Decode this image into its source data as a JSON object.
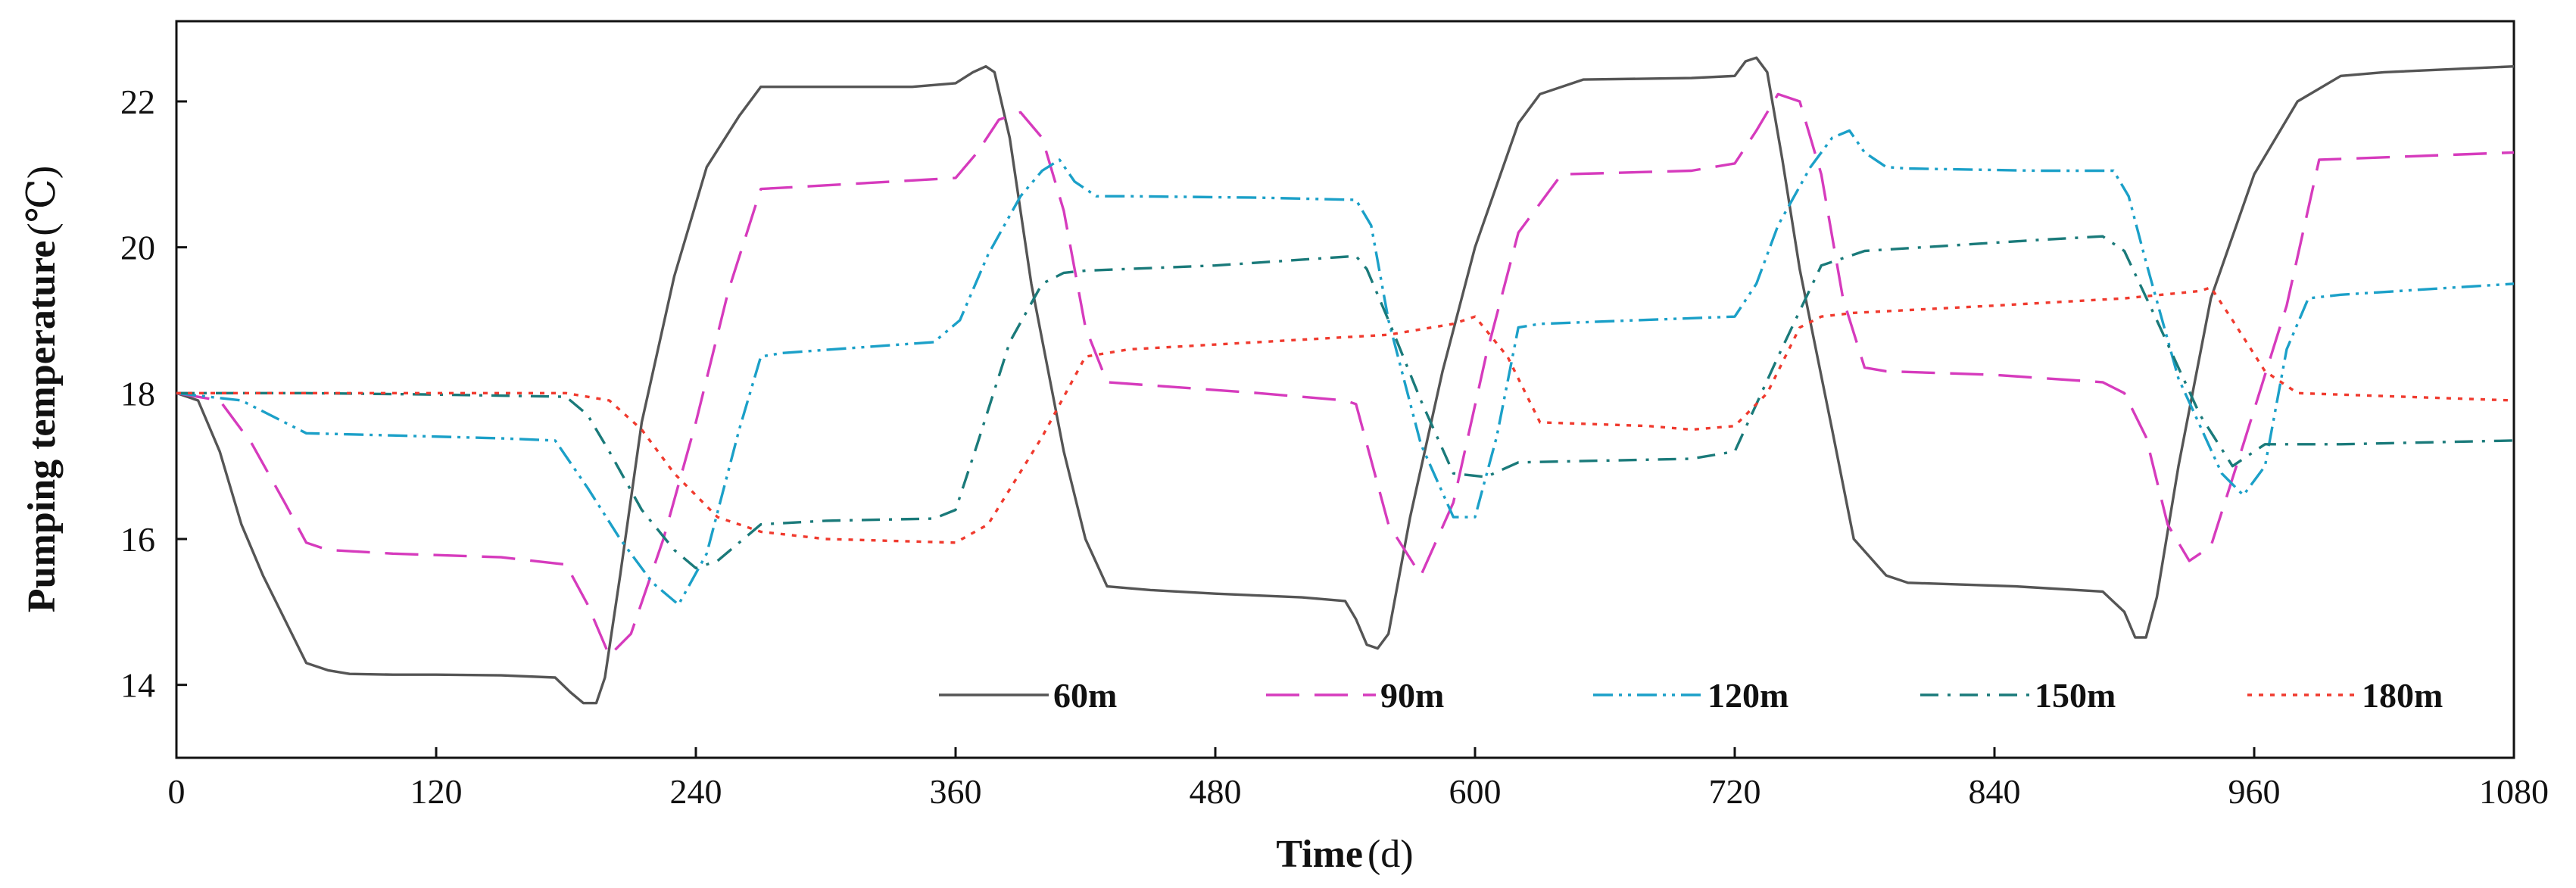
{
  "chart_data": {
    "type": "line",
    "title": "",
    "xlabel": "Time",
    "xlabel_unit": "(d)",
    "ylabel": "Pumping temperature",
    "ylabel_unit": "(℃)",
    "xlim": [
      0,
      1080
    ],
    "ylim": [
      13,
      23.1
    ],
    "xticks": [
      0,
      120,
      240,
      360,
      480,
      600,
      720,
      840,
      960,
      1080
    ],
    "yticks": [
      14,
      16,
      18,
      20,
      22
    ],
    "grid": false,
    "legend_position": "bottom-right",
    "series": [
      {
        "name": "60m",
        "color": "#555555",
        "stroke_width": 3.4,
        "dash": "",
        "x": [
          0,
          10,
          20,
          30,
          40,
          50,
          60,
          70,
          80,
          100,
          120,
          150,
          175,
          182,
          188,
          194,
          198,
          205,
          215,
          230,
          245,
          260,
          270,
          300,
          340,
          360,
          368,
          374,
          378,
          385,
          395,
          410,
          420,
          430,
          450,
          480,
          520,
          540,
          545,
          550,
          555,
          560,
          570,
          585,
          600,
          620,
          630,
          650,
          700,
          720,
          725,
          730,
          735,
          742,
          750,
          765,
          775,
          790,
          800,
          850,
          890,
          900,
          905,
          910,
          915,
          925,
          940,
          960,
          980,
          1000,
          1020,
          1080
        ],
        "y": [
          18.0,
          17.9,
          17.2,
          16.2,
          15.5,
          14.9,
          14.3,
          14.2,
          14.15,
          14.14,
          14.14,
          14.13,
          14.1,
          13.9,
          13.75,
          13.75,
          14.1,
          15.5,
          17.6,
          19.6,
          21.1,
          21.8,
          22.2,
          22.2,
          22.2,
          22.25,
          22.4,
          22.48,
          22.4,
          21.5,
          19.5,
          17.2,
          16.0,
          15.35,
          15.3,
          15.25,
          15.2,
          15.15,
          14.9,
          14.55,
          14.5,
          14.7,
          16.3,
          18.3,
          20.0,
          21.7,
          22.1,
          22.3,
          22.32,
          22.35,
          22.55,
          22.6,
          22.4,
          21.2,
          19.7,
          17.5,
          16.0,
          15.5,
          15.4,
          15.35,
          15.28,
          15.0,
          14.65,
          14.65,
          15.2,
          17.0,
          19.3,
          21.0,
          22.0,
          22.35,
          22.4,
          22.48
        ]
      },
      {
        "name": "90m",
        "color": "#d63bbd",
        "stroke_width": 3.4,
        "dash": "44,20",
        "x": [
          0,
          20,
          35,
          50,
          60,
          70,
          100,
          150,
          180,
          190,
          200,
          210,
          225,
          240,
          255,
          270,
          300,
          360,
          370,
          380,
          390,
          400,
          410,
          420,
          430,
          500,
          540,
          545,
          560,
          575,
          590,
          605,
          620,
          640,
          700,
          720,
          730,
          740,
          750,
          760,
          770,
          780,
          790,
          840,
          890,
          900,
          910,
          920,
          930,
          940,
          955,
          975,
          990,
          1080
        ],
        "y": [
          18.0,
          17.9,
          17.3,
          16.5,
          15.95,
          15.85,
          15.8,
          15.75,
          15.65,
          15.1,
          14.4,
          14.7,
          16.0,
          17.6,
          19.4,
          20.8,
          20.85,
          20.95,
          21.3,
          21.75,
          21.85,
          21.5,
          20.5,
          18.9,
          18.15,
          18.0,
          17.9,
          17.85,
          16.2,
          15.5,
          16.5,
          18.5,
          20.2,
          21.0,
          21.05,
          21.15,
          21.6,
          22.1,
          22.0,
          21.0,
          19.3,
          18.35,
          18.3,
          18.25,
          18.15,
          18.0,
          17.4,
          16.2,
          15.7,
          15.9,
          17.3,
          19.2,
          21.2,
          21.3
        ]
      },
      {
        "name": "120m",
        "color": "#1ba0c8",
        "stroke_width": 3.4,
        "dash": "26,8,4,8,4,8",
        "x": [
          0,
          30,
          50,
          60,
          100,
          150,
          175,
          190,
          205,
          220,
          232,
          245,
          260,
          270,
          280,
          350,
          362,
          375,
          390,
          400,
          408,
          415,
          425,
          440,
          500,
          545,
          552,
          560,
          575,
          590,
          600,
          610,
          620,
          630,
          720,
          730,
          740,
          755,
          765,
          773,
          780,
          790,
          800,
          860,
          895,
          902,
          910,
          925,
          945,
          955,
          965,
          975,
          985,
          1000,
          1080
        ],
        "y": [
          18.0,
          17.9,
          17.6,
          17.45,
          17.42,
          17.38,
          17.35,
          16.7,
          16.0,
          15.4,
          15.1,
          15.8,
          17.5,
          18.5,
          18.55,
          18.7,
          19.0,
          19.9,
          20.7,
          21.05,
          21.2,
          20.9,
          20.7,
          20.7,
          20.68,
          20.65,
          20.3,
          19.0,
          17.3,
          16.3,
          16.3,
          17.4,
          18.9,
          18.95,
          19.05,
          19.5,
          20.3,
          21.1,
          21.5,
          21.6,
          21.3,
          21.1,
          21.08,
          21.05,
          21.05,
          20.7,
          19.8,
          18.2,
          16.9,
          16.6,
          17.0,
          18.6,
          19.3,
          19.35,
          19.5
        ]
      },
      {
        "name": "150m",
        "color": "#1a7a7a",
        "stroke_width": 3.4,
        "dash": "24,12,4,12",
        "x": [
          0,
          60,
          120,
          180,
          190,
          200,
          215,
          230,
          240,
          250,
          270,
          300,
          350,
          360,
          370,
          385,
          400,
          410,
          420,
          480,
          545,
          550,
          560,
          575,
          590,
          605,
          620,
          700,
          720,
          740,
          760,
          780,
          860,
          890,
          900,
          915,
          935,
          950,
          965,
          1000,
          1080
        ],
        "y": [
          18.0,
          18.0,
          17.98,
          17.95,
          17.7,
          17.2,
          16.4,
          15.85,
          15.6,
          15.7,
          16.2,
          16.25,
          16.28,
          16.4,
          17.3,
          18.7,
          19.5,
          19.65,
          19.68,
          19.75,
          19.88,
          19.7,
          19.0,
          17.9,
          16.9,
          16.85,
          17.05,
          17.1,
          17.2,
          18.5,
          19.75,
          19.95,
          20.1,
          20.15,
          19.95,
          19.0,
          17.7,
          17.0,
          17.3,
          17.3,
          17.35
        ]
      },
      {
        "name": "180m",
        "color": "#f03a2e",
        "stroke_width": 3.4,
        "dash": "6,9",
        "x": [
          0,
          100,
          180,
          200,
          215,
          230,
          250,
          270,
          300,
          360,
          375,
          400,
          420,
          440,
          500,
          560,
          590,
          600,
          615,
          630,
          680,
          700,
          720,
          735,
          750,
          760,
          775,
          840,
          900,
          935,
          940,
          950,
          965,
          980,
          1080
        ],
        "y": [
          18.0,
          18.0,
          18.0,
          17.9,
          17.5,
          16.9,
          16.3,
          16.1,
          16.0,
          15.95,
          16.2,
          17.4,
          18.5,
          18.6,
          18.7,
          18.8,
          18.95,
          19.05,
          18.5,
          17.6,
          17.55,
          17.5,
          17.55,
          18.0,
          18.9,
          19.05,
          19.1,
          19.2,
          19.3,
          19.4,
          19.45,
          19.0,
          18.3,
          18.0,
          17.9
        ]
      }
    ]
  }
}
